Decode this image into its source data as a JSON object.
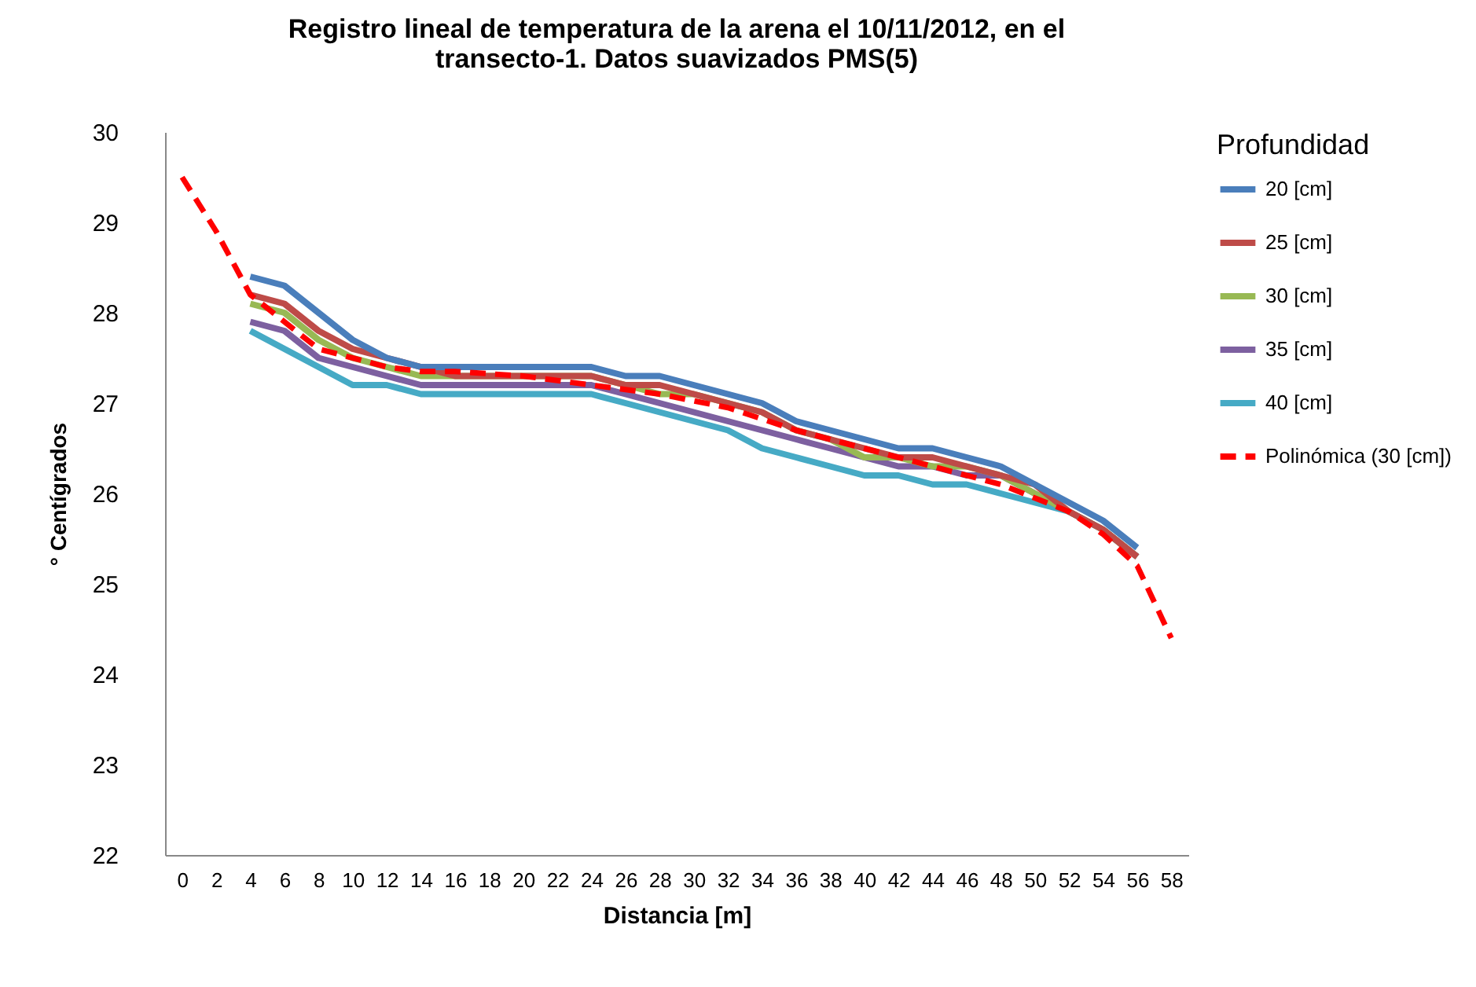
{
  "chart_data": {
    "type": "line",
    "title": "Registro lineal de temperatura de la arena el 10/11/2012,  en el transecto-1. Datos suavizados PMS(5)",
    "xlabel": "Distancia [m]",
    "ylabel": "° Centígrados",
    "legend_title": "Profundidad",
    "x": [
      4,
      6,
      8,
      10,
      12,
      14,
      16,
      18,
      20,
      22,
      24,
      26,
      28,
      30,
      32,
      34,
      36,
      38,
      40,
      42,
      44,
      46,
      48,
      50,
      52,
      54,
      56
    ],
    "xlim": [
      -1,
      59
    ],
    "xticks": [
      0,
      2,
      4,
      6,
      8,
      10,
      12,
      14,
      16,
      18,
      20,
      22,
      24,
      26,
      28,
      30,
      32,
      34,
      36,
      38,
      40,
      42,
      44,
      46,
      48,
      50,
      52,
      54,
      56,
      58
    ],
    "ylim": [
      22,
      30
    ],
    "yticks": [
      22,
      23,
      24,
      25,
      26,
      27,
      28,
      29,
      30
    ],
    "grid": false,
    "legend": "right",
    "line_style": "solid",
    "series": [
      {
        "name": "20 [cm]",
        "color": "#4a7ebb",
        "values": [
          28.4,
          28.3,
          28.0,
          27.7,
          27.5,
          27.4,
          27.4,
          27.4,
          27.4,
          27.4,
          27.4,
          27.3,
          27.3,
          27.2,
          27.1,
          27.0,
          26.8,
          26.7,
          26.6,
          26.5,
          26.5,
          26.4,
          26.3,
          26.1,
          25.9,
          25.7,
          25.4
        ]
      },
      {
        "name": "25 [cm]",
        "color": "#be4b48",
        "values": [
          28.2,
          28.1,
          27.8,
          27.6,
          27.5,
          27.4,
          27.3,
          27.3,
          27.3,
          27.3,
          27.3,
          27.2,
          27.2,
          27.1,
          27.0,
          26.9,
          26.7,
          26.6,
          26.5,
          26.4,
          26.4,
          26.3,
          26.2,
          26.1,
          25.8,
          25.6,
          25.3
        ]
      },
      {
        "name": "30 [cm]",
        "color": "#98b954",
        "values": [
          28.1,
          28.0,
          27.7,
          27.5,
          27.4,
          27.3,
          27.3,
          27.3,
          27.3,
          27.3,
          27.3,
          27.2,
          27.1,
          27.1,
          27.0,
          26.9,
          26.7,
          26.6,
          26.4,
          26.4,
          26.3,
          26.3,
          26.2,
          26.0,
          25.8,
          25.6,
          25.3
        ]
      },
      {
        "name": "35 [cm]",
        "color": "#7d60a0",
        "values": [
          27.9,
          27.8,
          27.5,
          27.4,
          27.3,
          27.2,
          27.2,
          27.2,
          27.2,
          27.2,
          27.2,
          27.1,
          27.0,
          26.9,
          26.8,
          26.7,
          26.6,
          26.5,
          26.4,
          26.3,
          26.3,
          26.2,
          26.2,
          26.0,
          25.8,
          25.6,
          25.3
        ]
      },
      {
        "name": "40 [cm]",
        "color": "#46aac5",
        "values": [
          27.8,
          27.6,
          27.4,
          27.2,
          27.2,
          27.1,
          27.1,
          27.1,
          27.1,
          27.1,
          27.1,
          27.0,
          26.9,
          26.8,
          26.7,
          26.5,
          26.4,
          26.3,
          26.2,
          26.2,
          26.1,
          26.1,
          26.0,
          25.9,
          25.8,
          25.6,
          25.3
        ]
      },
      {
        "name": "Polinómica (30 [cm])",
        "color": "#ff0000",
        "line_style": "dashed",
        "x": [
          0,
          2,
          4,
          6,
          8,
          10,
          12,
          14,
          16,
          20,
          24,
          28,
          32,
          36,
          40,
          44,
          48,
          50,
          52,
          54,
          56,
          58
        ],
        "values": [
          29.5,
          28.9,
          28.2,
          27.9,
          27.6,
          27.5,
          27.4,
          27.35,
          27.35,
          27.3,
          27.2,
          27.1,
          26.95,
          26.7,
          26.5,
          26.3,
          26.1,
          25.95,
          25.8,
          25.55,
          25.2,
          24.4
        ]
      }
    ]
  }
}
